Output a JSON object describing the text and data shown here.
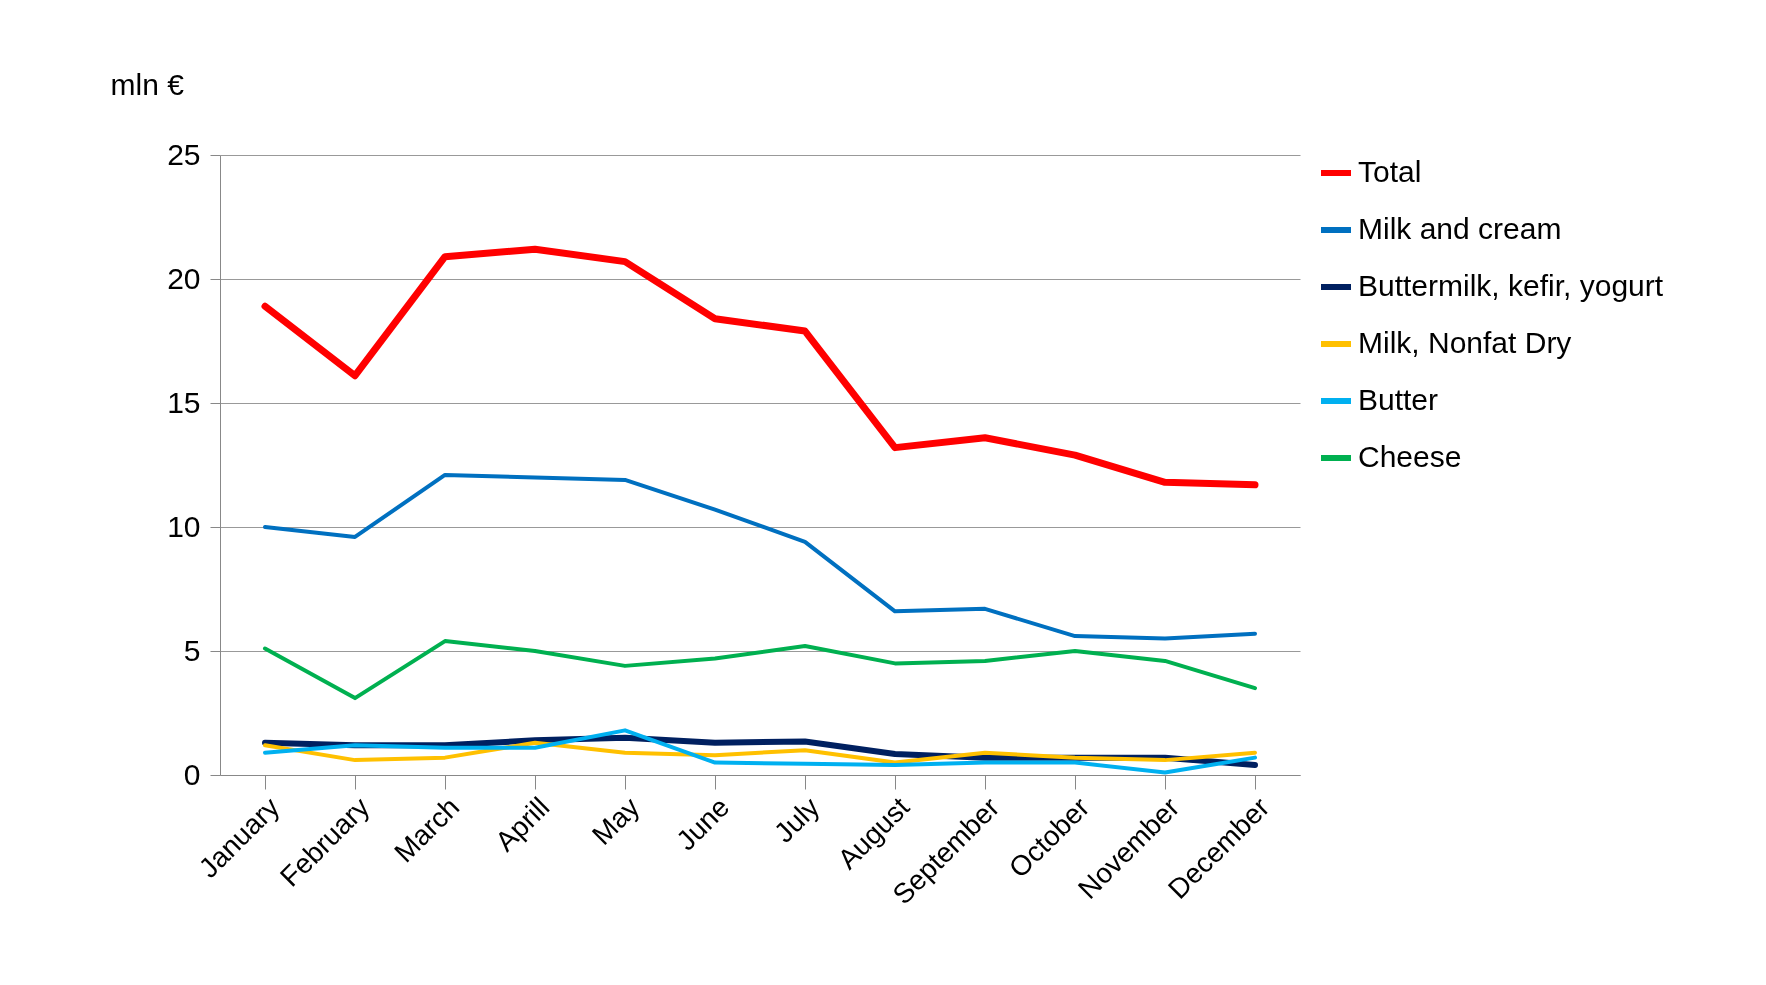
{
  "chart_data": {
    "type": "line",
    "ylabel": "mln €",
    "categories": [
      "January",
      "February",
      "March",
      "Aprill",
      "May",
      "June",
      "July",
      "August",
      "September",
      "October",
      "November",
      "December"
    ],
    "series": [
      {
        "name": "Total",
        "color": "#ff0000",
        "values": [
          18.9,
          16.1,
          20.9,
          21.2,
          20.7,
          18.4,
          17.9,
          13.2,
          13.6,
          12.9,
          11.8,
          11.7
        ]
      },
      {
        "name": "Milk and cream",
        "color": "#0070c0",
        "values": [
          10.0,
          9.6,
          12.1,
          12.0,
          11.9,
          10.7,
          9.4,
          6.6,
          6.7,
          5.6,
          5.5,
          5.7
        ]
      },
      {
        "name": "Buttermilk, kefir, yogurt",
        "color": "#002060",
        "values": [
          1.3,
          1.2,
          1.2,
          1.4,
          1.5,
          1.3,
          1.35,
          0.85,
          0.7,
          0.7,
          0.7,
          0.4
        ]
      },
      {
        "name": "Milk, Nonfat Dry",
        "color": "#ffc000",
        "values": [
          1.2,
          0.6,
          0.7,
          1.3,
          0.9,
          0.8,
          1.0,
          0.5,
          0.9,
          0.7,
          0.6,
          0.9
        ]
      },
      {
        "name": "Butter",
        "color": "#00b0f0",
        "values": [
          0.9,
          1.2,
          1.1,
          1.1,
          1.8,
          0.5,
          0.45,
          0.4,
          0.5,
          0.5,
          0.1,
          0.7
        ]
      },
      {
        "name": "Cheese",
        "color": "#00b050",
        "values": [
          5.1,
          3.1,
          5.4,
          5.0,
          4.4,
          4.7,
          5.2,
          4.5,
          4.6,
          5.0,
          4.6,
          3.5
        ]
      }
    ],
    "ylim": [
      0,
      25
    ],
    "yticks": [
      0,
      5,
      10,
      15,
      20,
      25
    ],
    "grid": "y",
    "legend": "right",
    "marker": "none",
    "line_style": "solid"
  }
}
